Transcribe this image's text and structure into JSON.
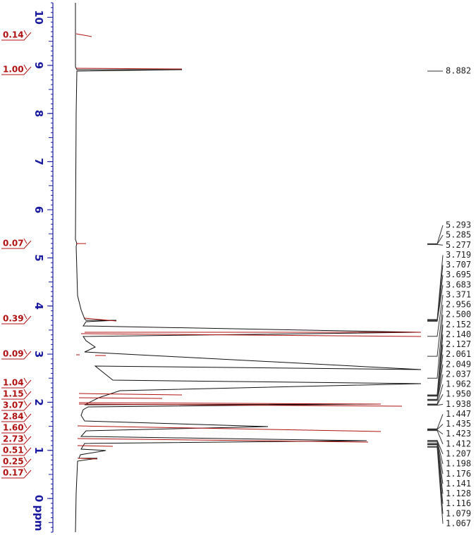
{
  "chart_data": {
    "type": "nmr",
    "axis_label": "ppm",
    "ylim": [
      -0.7,
      10.3
    ],
    "yticks": [
      0,
      1,
      2,
      3,
      4,
      5,
      6,
      7,
      8,
      9,
      10
    ],
    "integrals": {
      "values": [
        0.14,
        1.0,
        0.07,
        0.39,
        0.09,
        1.04,
        1.15,
        3.07,
        2.84,
        1.6,
        2.73,
        0.51,
        0.25,
        0.17
      ],
      "value_labels": [
        "0.14",
        "1.00",
        "0.07",
        "0.39",
        "0.09",
        "1.04",
        "1.15",
        "3.07",
        "2.84",
        "1.60",
        "2.73",
        "0.51",
        "0.25",
        "0.17"
      ],
      "color": "#b01010"
    },
    "peaks": {
      "values": [
        8.882,
        5.293,
        5.285,
        5.277,
        3.719,
        3.707,
        3.695,
        3.683,
        3.371,
        2.956,
        2.5,
        2.152,
        2.14,
        2.127,
        2.061,
        2.049,
        2.037,
        1.962,
        1.95,
        1.938,
        1.447,
        1.435,
        1.423,
        1.412,
        1.207,
        1.198,
        1.176,
        1.141,
        1.128,
        1.116,
        1.079,
        1.067
      ],
      "value_labels": [
        "8.882",
        "5.293",
        "5.285",
        "5.277",
        "3.719",
        "3.707",
        "3.695",
        "3.683",
        "3.371",
        "2.956",
        "2.500",
        "2.152",
        "2.140",
        "2.127",
        "2.061",
        "2.049",
        "2.037",
        "1.962",
        "1.950",
        "1.938",
        "1.447",
        "1.435",
        "1.423",
        "1.412",
        "1.207",
        "1.198",
        "1.176",
        "1.141",
        "1.128",
        "1.116",
        "1.079",
        "1.067"
      ]
    }
  }
}
